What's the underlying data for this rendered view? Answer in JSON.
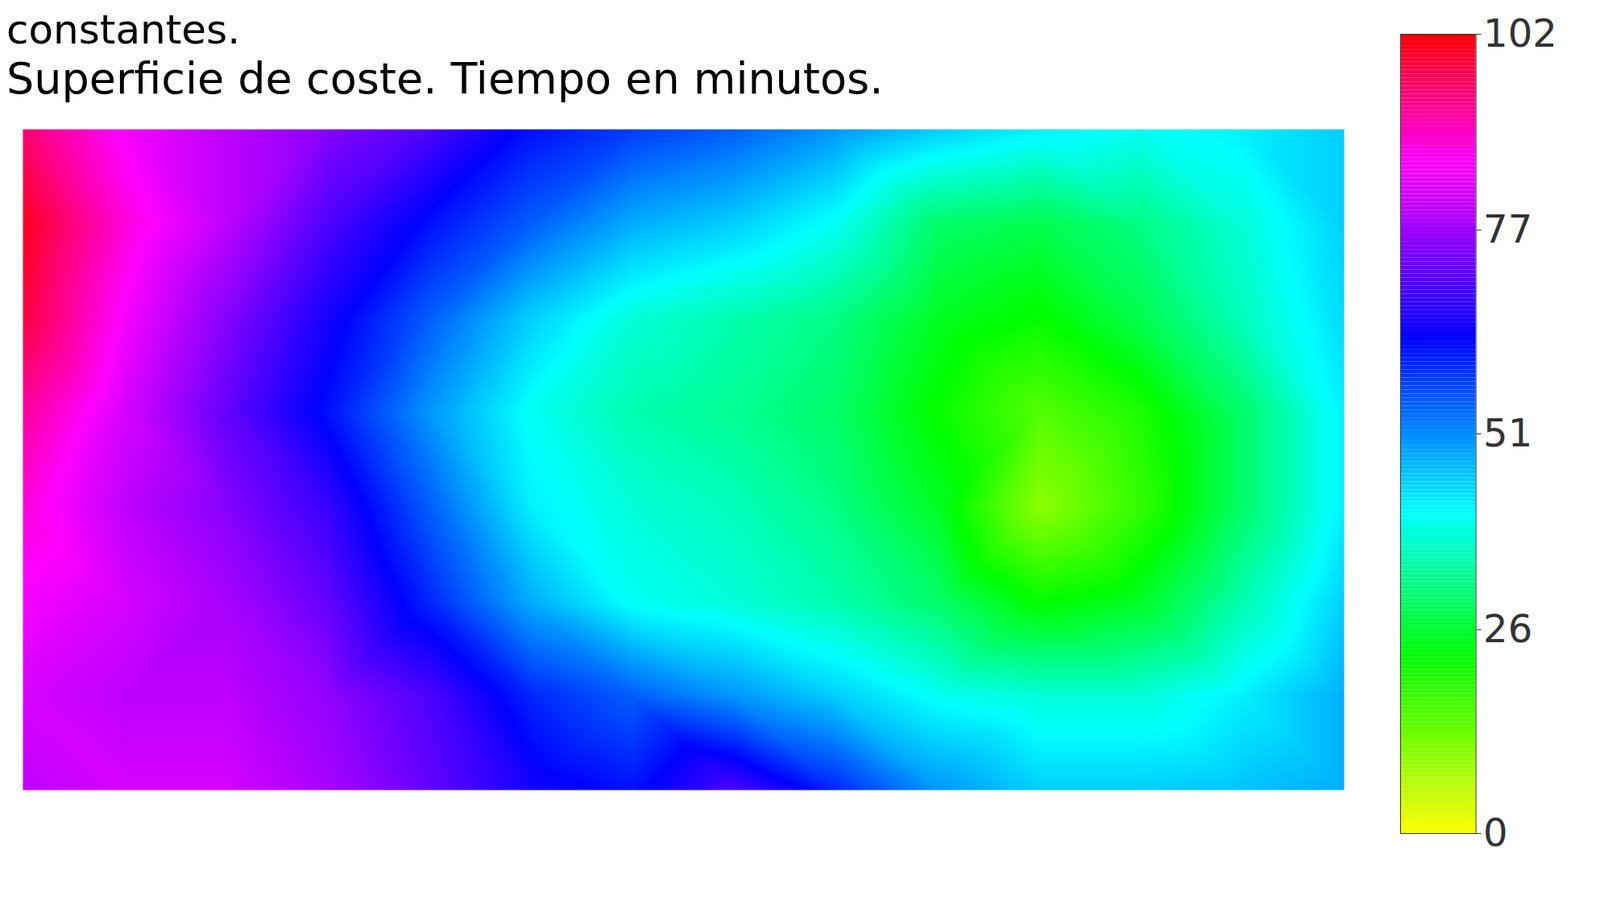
{
  "chart_data": {
    "type": "surface",
    "heading": "constantes.",
    "title": "Superficie de coste. Tiempo en minutos.",
    "tick_labels": false,
    "cells": [
      [
        95,
        85,
        80,
        75,
        70,
        62,
        58,
        55,
        50,
        45,
        42,
        40,
        42,
        45
      ],
      [
        100,
        88,
        80,
        70,
        62,
        55,
        48,
        45,
        40,
        30,
        28,
        32,
        38,
        45
      ],
      [
        98,
        85,
        75,
        65,
        55,
        45,
        38,
        35,
        32,
        25,
        22,
        28,
        36,
        44
      ],
      [
        92,
        82,
        72,
        62,
        50,
        40,
        35,
        33,
        30,
        22,
        15,
        20,
        30,
        42
      ],
      [
        88,
        80,
        75,
        68,
        55,
        42,
        38,
        36,
        32,
        25,
        10,
        18,
        30,
        42
      ],
      [
        85,
        82,
        78,
        72,
        60,
        48,
        40,
        38,
        35,
        30,
        22,
        25,
        35,
        45
      ],
      [
        82,
        80,
        80,
        76,
        70,
        60,
        55,
        50,
        45,
        40,
        38,
        38,
        42,
        48
      ],
      [
        80,
        82,
        82,
        78,
        72,
        65,
        62,
        70,
        60,
        50,
        45,
        45,
        46,
        48
      ]
    ],
    "colorbar": {
      "range": [
        0,
        102
      ],
      "ticks": [
        0,
        26,
        51,
        77,
        102
      ]
    }
  }
}
